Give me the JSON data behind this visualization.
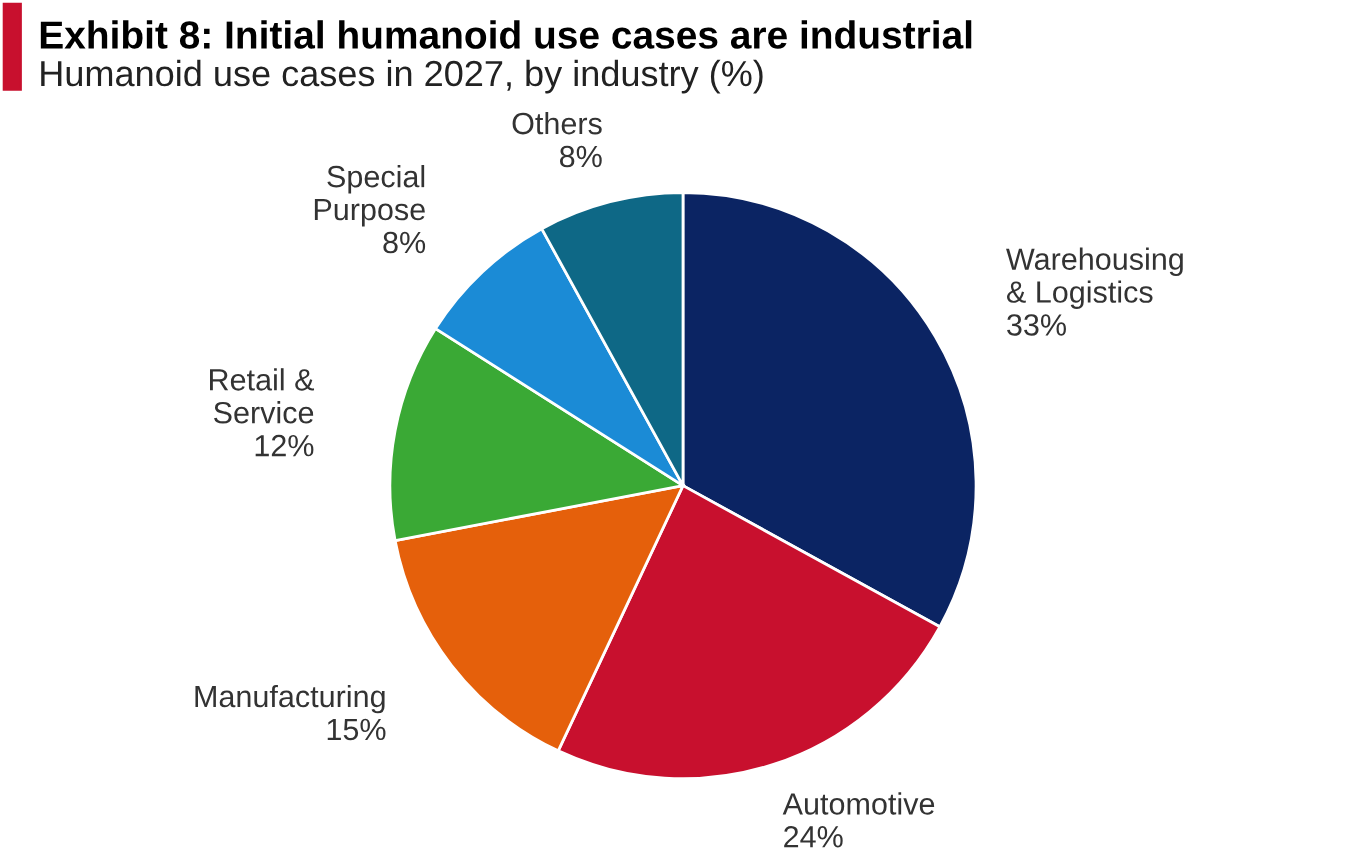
{
  "chart_data": {
    "type": "pie",
    "title": "Exhibit 8: Initial humanoid use cases are industrial",
    "subtitle": "Humanoid use cases in 2027, by industry (%)",
    "categories": [
      "Warehousing\n& Logistics",
      "Automotive",
      "Manufacturing",
      "Retail &\nService",
      "Special\nPurpose",
      "Others"
    ],
    "values": [
      33,
      24,
      15,
      12,
      8,
      8
    ],
    "colors": [
      "#0b2463",
      "#c8102e",
      "#e5600b",
      "#3aa935",
      "#1b8bd6",
      "#0e6886"
    ],
    "value_labels": [
      "33%",
      "24%",
      "15%",
      "12%",
      "8%",
      "8%"
    ],
    "legend": false
  }
}
